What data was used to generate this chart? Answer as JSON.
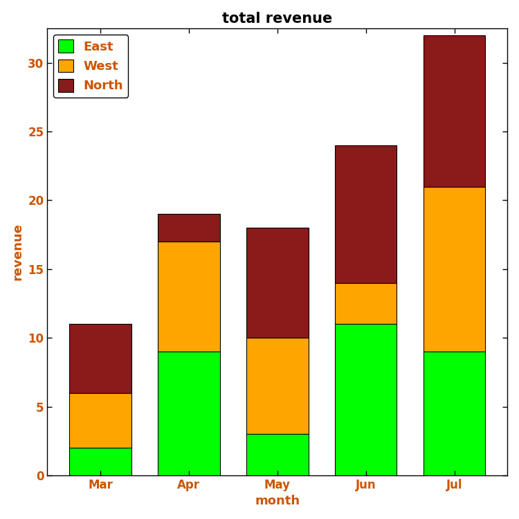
{
  "categories": [
    "Mar",
    "Apr",
    "May",
    "Jun",
    "Jul"
  ],
  "east": [
    2,
    9,
    3,
    11,
    9
  ],
  "west": [
    4,
    8,
    7,
    3,
    12
  ],
  "north": [
    5,
    2,
    8,
    10,
    11
  ],
  "east_color": "#00FF00",
  "west_color": "#FFA500",
  "north_color": "#8B1A1A",
  "title": "total revenue",
  "xlabel": "month",
  "ylabel": "revenue",
  "ylim": [
    0,
    32.5
  ],
  "yticks": [
    0,
    5,
    10,
    15,
    20,
    25,
    30
  ],
  "legend_labels": [
    "East",
    "West",
    "North"
  ],
  "title_fontsize": 15,
  "axis_label_fontsize": 13,
  "tick_fontsize": 12,
  "legend_fontsize": 13,
  "label_color": "#CC5500",
  "background_color": "#FFFFFF",
  "bar_width": 0.7,
  "bar_edge_color": "black",
  "bar_edge_width": 0.8
}
